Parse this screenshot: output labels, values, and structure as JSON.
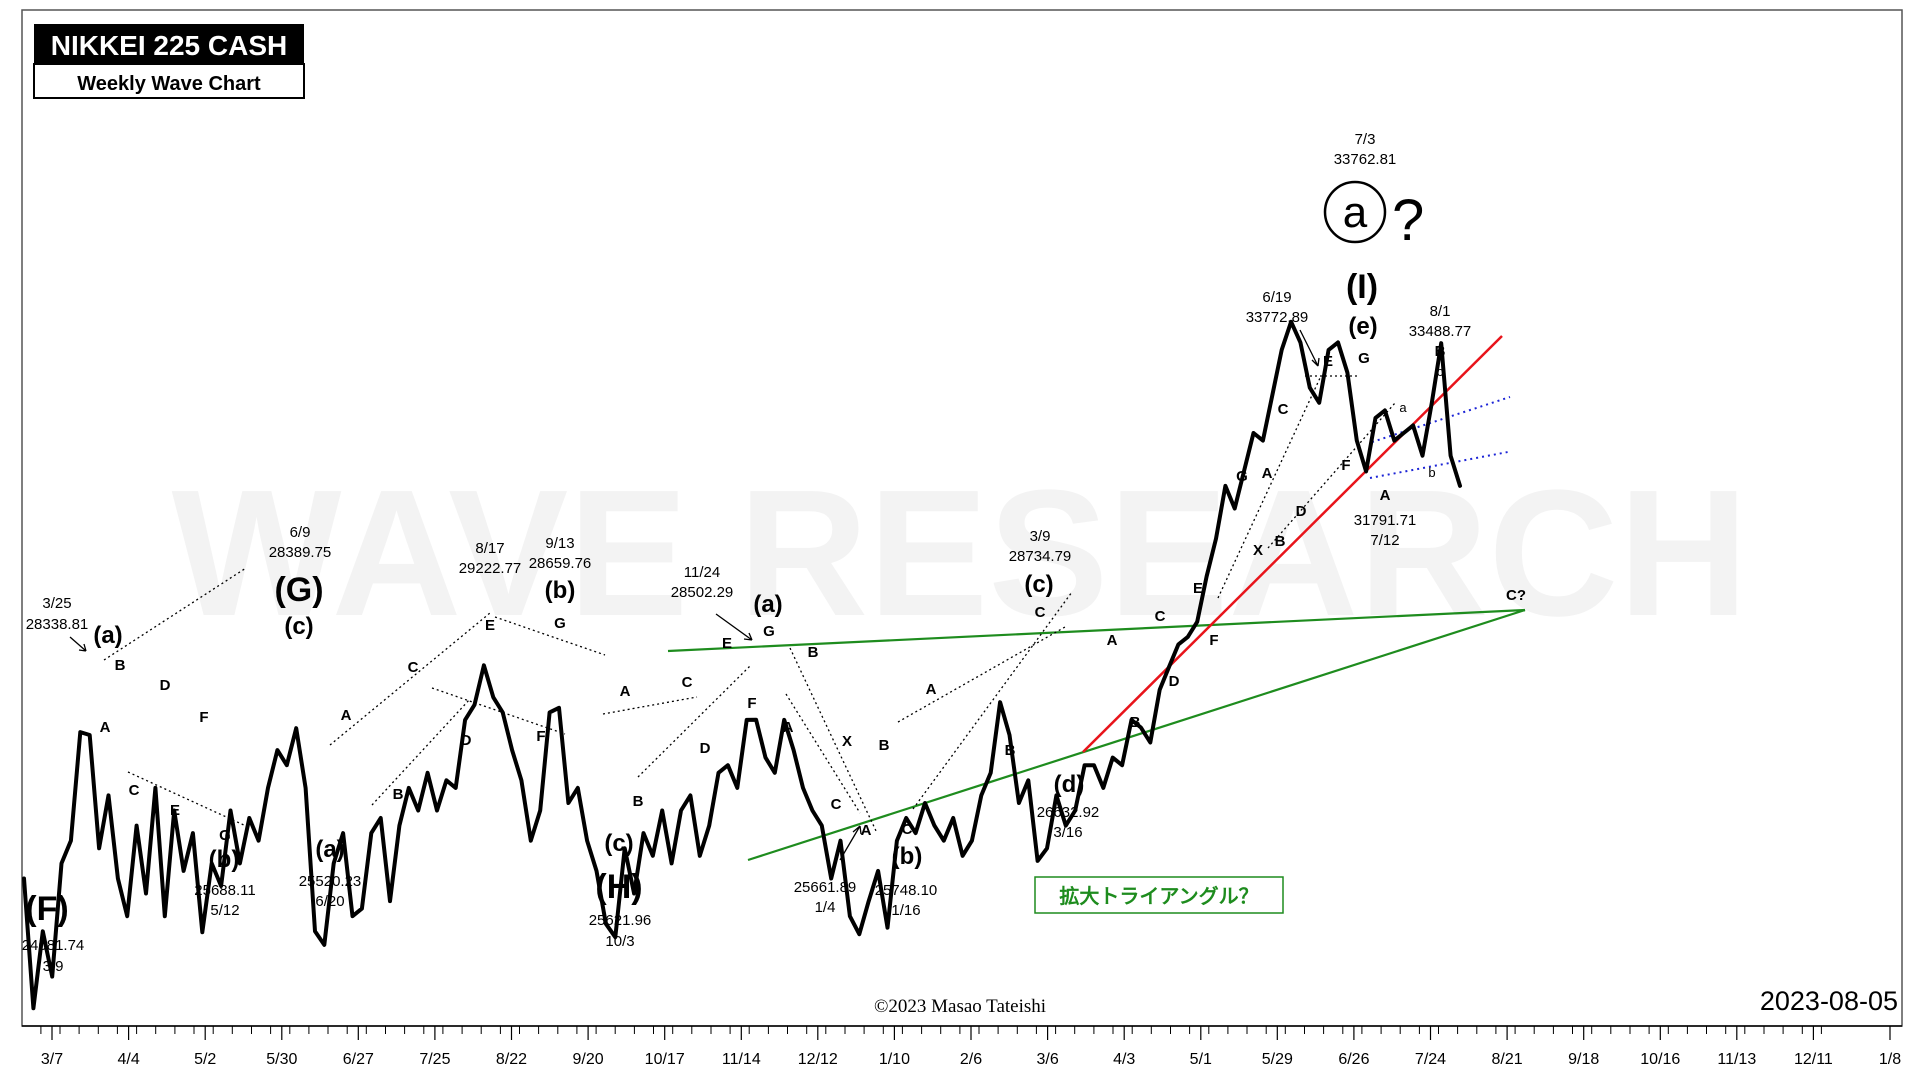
{
  "title_box": {
    "title": "NIKKEI 225 CASH",
    "subtitle": "Weekly Wave Chart"
  },
  "watermark": "WAVE RESEARCH",
  "copyright": "©2023 Masao Tateishi",
  "date_stamp": "2023-08-05",
  "colors": {
    "price": "#000000",
    "red_line": "#e8141b",
    "green_line": "#1e8c1e",
    "blue_dotted": "#1c24d6",
    "triangle_note": "#1e8c1e"
  },
  "triangle_note": "拡大トライアングル？",
  "circled_label": {
    "glyph": "a",
    "suffix": "?"
  },
  "chart_data": {
    "type": "line",
    "title": "NIKKEI 225 CASH",
    "subtitle": "Weekly Wave Chart",
    "x_axis_ticks": [
      "3/7",
      "4/4",
      "5/2",
      "5/30",
      "6/27",
      "7/25",
      "8/22",
      "9/20",
      "10/17",
      "11/14",
      "12/12",
      "1/10",
      "2/6",
      "3/6",
      "4/3",
      "5/1",
      "5/29",
      "6/26",
      "7/24",
      "8/21",
      "9/18",
      "10/16",
      "11/13",
      "12/11",
      "1/8"
    ],
    "series": [
      {
        "values": [
          26400,
          24681.74,
          25700,
          25100,
          26600,
          26900,
          28338.81,
          28300,
          26800,
          27500,
          26400,
          25900,
          27100,
          26200,
          27600,
          25900,
          27300,
          26500,
          27000,
          25688.11,
          26600,
          26300,
          27300,
          26600,
          27200,
          26900,
          27600,
          28100,
          27900,
          28389.75,
          27600,
          25700,
          25520.23,
          26600,
          27000,
          25900,
          26000,
          27000,
          27200,
          26100,
          27100,
          27600,
          27300,
          27800,
          27300,
          27700,
          27600,
          28500,
          28700,
          29222.77,
          28800,
          28600,
          28100,
          27700,
          26900,
          27300,
          28600,
          28659.76,
          27400,
          27600,
          26900,
          26500,
          25800,
          25621.96,
          26800,
          26200,
          27000,
          26700,
          27300,
          26600,
          27300,
          27500,
          26700,
          27100,
          27800,
          27900,
          27600,
          28500,
          28502.29,
          28000,
          27800,
          28500,
          28100,
          27600,
          27300,
          27100,
          26400,
          26900,
          25900,
          25661.89,
          26100,
          26500,
          25748.1,
          26900,
          27200,
          27000,
          27400,
          27100,
          26900,
          27200,
          26700,
          26900,
          27500,
          27800,
          28734.79,
          28300,
          27400,
          27700,
          26632.92,
          26800,
          27500,
          27100,
          27300,
          27900,
          27900,
          27600,
          28000,
          27900,
          28500,
          28400,
          28200,
          28900,
          29200,
          29500,
          29600,
          29800,
          30400,
          30900,
          31600,
          31300,
          31800,
          32300,
          32200,
          32800,
          33400,
          33772.89,
          33500,
          32900,
          32700,
          33400,
          33500,
          33100,
          32200,
          31791.71,
          32500,
          32600,
          32200,
          32300,
          32400,
          32000,
          32700,
          33488.77,
          32000,
          31600
        ]
      }
    ],
    "annotations": [
      {
        "text": "3/25",
        "text2": "28338.81",
        "wave": "(a)"
      },
      {
        "text": "6/9",
        "text2": "28389.75",
        "wave": "(G)",
        "sub": "(c)"
      },
      {
        "text": "8/17",
        "text2": "29222.77",
        "wave": "E"
      },
      {
        "text": "9/13",
        "text2": "28659.76",
        "wave": "(b)"
      },
      {
        "text": "11/24",
        "text2": "28502.29",
        "wave": "(a)"
      },
      {
        "text": "3/9",
        "text2": "28734.79",
        "wave": "(c)"
      },
      {
        "text": "6/19",
        "text2": "33772.89",
        "wave": "E"
      },
      {
        "text": "7/3",
        "text2": "33762.81",
        "wave": "(I)"
      },
      {
        "text": "8/1",
        "text2": "33488.77",
        "wave": "B"
      },
      {
        "text": "24681.74",
        "text2": "3/9",
        "wave": "(F)"
      },
      {
        "text": "25688.11",
        "text2": "5/12",
        "wave": "(b)"
      },
      {
        "text": "25520.23",
        "text2": "6/20",
        "wave": "(a)"
      },
      {
        "text": "25621.96",
        "text2": "10/3",
        "wave": "(H)"
      },
      {
        "text": "25661.89",
        "text2": "1/4",
        "wave": "A"
      },
      {
        "text": "25748.10",
        "text2": "1/16",
        "wave": "(b)"
      },
      {
        "text": "26632.92",
        "text2": "3/16",
        "wave": "(d)"
      },
      {
        "text": "31791.71",
        "text2": "7/12",
        "wave": "A"
      }
    ],
    "grid": false,
    "legend": "none"
  },
  "labels": {
    "p1": "3/25",
    "p2": "28338.81",
    "p3": "6/9",
    "p4": "28389.75",
    "p5": "8/17",
    "p6": "29222.77",
    "p7": "9/13",
    "p8": "28659.76",
    "p9": "11/24",
    "p10": "28502.29",
    "p11": "3/9",
    "p12": "28734.79",
    "p13": "6/19",
    "p14": "33772.89",
    "p15": "7/3",
    "p16": "33762.81",
    "p17": "8/1",
    "p18": "33488.77",
    "t1": "24681.74",
    "t2": "3/9",
    "t3": "25688.11",
    "t4": "5/12",
    "t5": "25520.23",
    "t6": "6/20",
    "t7": "25621.96",
    "t8": "10/3",
    "t9": "25661.89",
    "t10": "1/4",
    "t11": "25748.10",
    "t12": "1/16",
    "t13": "26632.92",
    "t14": "3/16",
    "t15": "31791.71",
    "t16": "7/12",
    "F": "(F)",
    "G": "(G)",
    "H": "(H)",
    "I": "(I)",
    "a": "(a)",
    "b": "(b)",
    "c": "(c)",
    "d": "(d)",
    "e": "(e)",
    "A": "A",
    "B": "B",
    "C": "C",
    "D": "D",
    "E": "E",
    "Fs": "F",
    "Gs": "G",
    "X": "X",
    "la": "a",
    "lb": "b",
    "lc": "c",
    "Cq": "C?"
  }
}
